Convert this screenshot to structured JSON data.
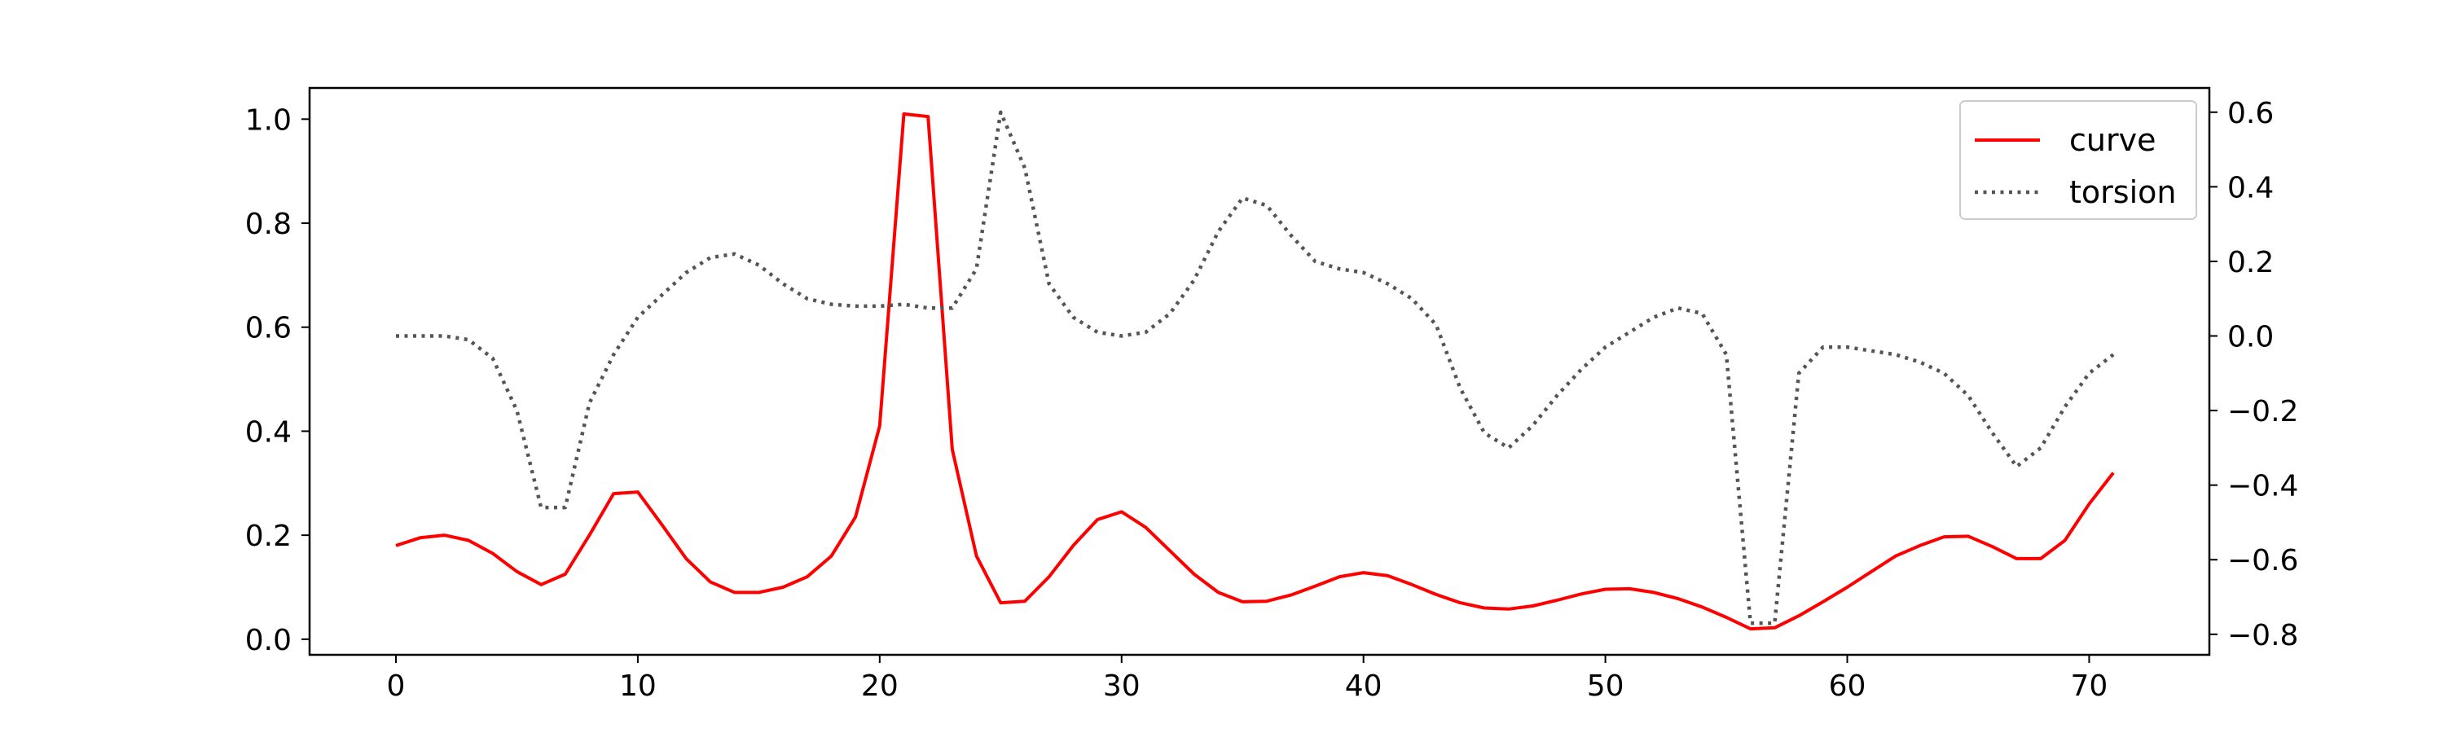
{
  "chart_data": {
    "type": "line",
    "xlim": [
      -3.57,
      74.97
    ],
    "xticks": [
      0,
      10,
      20,
      30,
      40,
      50,
      60,
      70
    ],
    "ylim_left": [
      -0.03,
      1.06
    ],
    "yticks_left": [
      0.0,
      0.2,
      0.4,
      0.6,
      0.8,
      1.0
    ],
    "ylim_right": [
      -0.855,
      0.665
    ],
    "yticks_right": [
      -0.8,
      -0.6,
      -0.4,
      -0.2,
      0.0,
      0.2,
      0.4,
      0.6
    ],
    "legend": {
      "position": "upper-right"
    },
    "series": [
      {
        "name": "curve",
        "axis": "left",
        "color": "#ff0000",
        "style": "solid",
        "x": [
          0,
          1,
          2,
          3,
          4,
          5,
          6,
          7,
          8,
          9,
          10,
          11,
          12,
          13,
          14,
          15,
          16,
          17,
          18,
          19,
          20,
          21,
          22,
          23,
          24,
          25,
          26,
          27,
          28,
          29,
          30,
          31,
          32,
          33,
          34,
          35,
          36,
          37,
          38,
          39,
          40,
          41,
          42,
          43,
          44,
          45,
          46,
          47,
          48,
          49,
          50,
          51,
          52,
          53,
          54,
          55,
          56,
          57,
          58,
          59,
          60,
          61,
          62,
          63,
          64,
          65,
          66,
          67,
          68,
          69,
          70,
          71
        ],
        "values": [
          0.18,
          0.195,
          0.2,
          0.19,
          0.165,
          0.13,
          0.105,
          0.125,
          0.2,
          0.28,
          0.283,
          0.22,
          0.155,
          0.11,
          0.09,
          0.09,
          0.1,
          0.12,
          0.16,
          0.235,
          0.41,
          1.01,
          1.005,
          0.365,
          0.16,
          0.07,
          0.073,
          0.12,
          0.18,
          0.23,
          0.245,
          0.215,
          0.17,
          0.125,
          0.09,
          0.072,
          0.073,
          0.085,
          0.102,
          0.12,
          0.128,
          0.122,
          0.105,
          0.086,
          0.07,
          0.06,
          0.058,
          0.064,
          0.075,
          0.087,
          0.096,
          0.097,
          0.09,
          0.078,
          0.062,
          0.042,
          0.02,
          0.022,
          0.045,
          0.072,
          0.1,
          0.13,
          0.16,
          0.18,
          0.197,
          0.198,
          0.178,
          0.155,
          0.155,
          0.19,
          0.26,
          0.32
        ]
      },
      {
        "name": "torsion",
        "axis": "right",
        "color": "#555555",
        "style": "dotted",
        "x": [
          0,
          1,
          2,
          3,
          4,
          5,
          6,
          7,
          8,
          9,
          10,
          11,
          12,
          13,
          14,
          15,
          16,
          17,
          18,
          19,
          20,
          21,
          22,
          23,
          24,
          25,
          26,
          27,
          28,
          29,
          30,
          31,
          32,
          33,
          34,
          35,
          36,
          37,
          38,
          39,
          40,
          41,
          42,
          43,
          44,
          45,
          46,
          47,
          48,
          49,
          50,
          51,
          52,
          53,
          54,
          55,
          56,
          57,
          58,
          59,
          60,
          61,
          62,
          63,
          64,
          65,
          66,
          67,
          68,
          69,
          70,
          71
        ],
        "values": [
          0.0,
          0.0,
          0.0,
          -0.01,
          -0.06,
          -0.2,
          -0.46,
          -0.46,
          -0.18,
          -0.05,
          0.05,
          0.11,
          0.17,
          0.21,
          0.22,
          0.19,
          0.14,
          0.1,
          0.085,
          0.08,
          0.08,
          0.085,
          0.075,
          0.075,
          0.18,
          0.6,
          0.45,
          0.14,
          0.05,
          0.01,
          0.0,
          0.01,
          0.06,
          0.15,
          0.28,
          0.37,
          0.35,
          0.27,
          0.2,
          0.18,
          0.17,
          0.14,
          0.1,
          0.03,
          -0.14,
          -0.26,
          -0.3,
          -0.24,
          -0.16,
          -0.09,
          -0.03,
          0.01,
          0.05,
          0.075,
          0.06,
          -0.05,
          -0.77,
          -0.77,
          -0.1,
          -0.03,
          -0.03,
          -0.04,
          -0.05,
          -0.07,
          -0.1,
          -0.16,
          -0.26,
          -0.35,
          -0.3,
          -0.19,
          -0.1,
          -0.05
        ]
      }
    ]
  }
}
